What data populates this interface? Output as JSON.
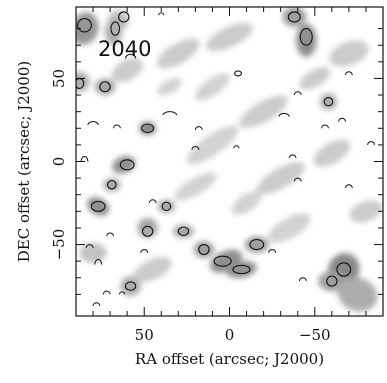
{
  "chart_data": {
    "type": "heatmap",
    "field_label": "2040",
    "xlabel": "RA offset (arcsec; J2000)",
    "ylabel": "DEC offset (arcsec; J2000)",
    "xlim": [
      90,
      -90
    ],
    "ylim": [
      -93,
      93
    ],
    "xticks": [
      50,
      0,
      -50
    ],
    "xtick_labels": [
      "50",
      "0",
      "−50"
    ],
    "yticks": [
      50,
      0,
      -50
    ],
    "ytick_labels": [
      "50",
      "0",
      "−50"
    ],
    "colormap": "greyscale",
    "grid": false,
    "contours": {
      "solid": [
        {
          "x": 85,
          "y": 82,
          "rx": 4,
          "ry": 4
        },
        {
          "x": 62,
          "y": 87,
          "rx": 3,
          "ry": 3
        },
        {
          "x": 67,
          "y": 80,
          "rx": 2.5,
          "ry": 4
        },
        {
          "x": 88,
          "y": 47,
          "rx": 2.5,
          "ry": 3
        },
        {
          "x": 73,
          "y": 45,
          "rx": 3,
          "ry": 3
        },
        {
          "x": 48,
          "y": 20,
          "rx": 3.5,
          "ry": 2.5
        },
        {
          "x": 60,
          "y": -2,
          "rx": 4,
          "ry": 3
        },
        {
          "x": 69,
          "y": -14,
          "rx": 2.5,
          "ry": 2.5
        },
        {
          "x": 77,
          "y": -27,
          "rx": 4,
          "ry": 3
        },
        {
          "x": 37,
          "y": -27,
          "rx": 2.5,
          "ry": 2.5
        },
        {
          "x": 48,
          "y": -42,
          "rx": 3,
          "ry": 3
        },
        {
          "x": 27,
          "y": -42,
          "rx": 3,
          "ry": 2.5
        },
        {
          "x": 15,
          "y": -53,
          "rx": 3,
          "ry": 3
        },
        {
          "x": 4,
          "y": -60,
          "rx": 5,
          "ry": 3
        },
        {
          "x": -7,
          "y": -65,
          "rx": 5,
          "ry": 2.5
        },
        {
          "x": -16,
          "y": -50,
          "rx": 4,
          "ry": 3
        },
        {
          "x": -38,
          "y": 87,
          "rx": 3.5,
          "ry": 3
        },
        {
          "x": -45,
          "y": 75,
          "rx": 3.5,
          "ry": 5
        },
        {
          "x": -58,
          "y": 36,
          "rx": 2.5,
          "ry": 2.5
        },
        {
          "x": -67,
          "y": -65,
          "rx": 4,
          "ry": 4
        },
        {
          "x": -60,
          "y": -72,
          "rx": 3,
          "ry": 3
        },
        {
          "x": -5,
          "y": 53,
          "rx": 2,
          "ry": 1.5
        },
        {
          "x": 58,
          "y": -75,
          "rx": 3,
          "ry": 2.5
        }
      ],
      "dashed": [
        {
          "x": 58,
          "y": 62,
          "rx": 3,
          "ry": 2.5
        },
        {
          "x": 40,
          "y": 88,
          "rx": 1.5,
          "ry": 1.5
        },
        {
          "x": 80,
          "y": 22,
          "rx": 3,
          "ry": 2
        },
        {
          "x": 66,
          "y": 20,
          "rx": 2,
          "ry": 2
        },
        {
          "x": 35,
          "y": 28,
          "rx": 4,
          "ry": 2
        },
        {
          "x": 18,
          "y": 19,
          "rx": 2,
          "ry": 2
        },
        {
          "x": 20,
          "y": 7,
          "rx": 2,
          "ry": 2
        },
        {
          "x": -4,
          "y": 8,
          "rx": 1.5,
          "ry": 1.5
        },
        {
          "x": -32,
          "y": 27,
          "rx": 3,
          "ry": 2
        },
        {
          "x": -40,
          "y": 40,
          "rx": 2,
          "ry": 2
        },
        {
          "x": -70,
          "y": 52,
          "rx": 2,
          "ry": 2
        },
        {
          "x": -56,
          "y": 20,
          "rx": 2,
          "ry": 2
        },
        {
          "x": -66,
          "y": 24,
          "rx": 2,
          "ry": 2
        },
        {
          "x": -37,
          "y": 2,
          "rx": 2,
          "ry": 2
        },
        {
          "x": -40,
          "y": -12,
          "rx": 2,
          "ry": 2
        },
        {
          "x": -70,
          "y": -16,
          "rx": 2,
          "ry": 2
        },
        {
          "x": 85,
          "y": 0,
          "rx": 2,
          "ry": 3
        },
        {
          "x": 45,
          "y": -25,
          "rx": 2,
          "ry": 2
        },
        {
          "x": 70,
          "y": -45,
          "rx": 2,
          "ry": 2
        },
        {
          "x": 82,
          "y": -52,
          "rx": 2,
          "ry": 2
        },
        {
          "x": 77,
          "y": -62,
          "rx": 2,
          "ry": 3
        },
        {
          "x": 72,
          "y": -80,
          "rx": 2,
          "ry": 2
        },
        {
          "x": 63,
          "y": -80,
          "rx": 1.5,
          "ry": 1.5
        },
        {
          "x": 78,
          "y": -87,
          "rx": 2,
          "ry": 2
        },
        {
          "x": -43,
          "y": -72,
          "rx": 2,
          "ry": 2
        },
        {
          "x": -25,
          "y": -55,
          "rx": 2,
          "ry": 2
        },
        {
          "x": 50,
          "y": -55,
          "rx": 2,
          "ry": 2
        },
        {
          "x": -83,
          "y": 10,
          "rx": 2,
          "ry": 2
        }
      ]
    },
    "emission_blobs": [
      {
        "x": 85,
        "y": 80,
        "sx": 8,
        "sy": 10,
        "a": 0.7,
        "rot": 20
      },
      {
        "x": 65,
        "y": 85,
        "sx": 6,
        "sy": 6,
        "a": 0.45,
        "rot": 0
      },
      {
        "x": 68,
        "y": 78,
        "sx": 5,
        "sy": 8,
        "a": 0.55,
        "rot": 0
      },
      {
        "x": 88,
        "y": 48,
        "sx": 6,
        "sy": 6,
        "a": 0.55,
        "rot": 0
      },
      {
        "x": 73,
        "y": 45,
        "sx": 6,
        "sy": 5,
        "a": 0.6,
        "rot": 0
      },
      {
        "x": 48,
        "y": 20,
        "sx": 5,
        "sy": 4,
        "a": 0.8,
        "rot": 0
      },
      {
        "x": 62,
        "y": -2,
        "sx": 7,
        "sy": 5,
        "a": 0.75,
        "rot": -20
      },
      {
        "x": 69,
        "y": -14,
        "sx": 5,
        "sy": 4,
        "a": 0.6,
        "rot": 0
      },
      {
        "x": 77,
        "y": -27,
        "sx": 7,
        "sy": 5,
        "a": 0.75,
        "rot": 30
      },
      {
        "x": 37,
        "y": -27,
        "sx": 5,
        "sy": 4,
        "a": 0.6,
        "rot": 0
      },
      {
        "x": 48,
        "y": -40,
        "sx": 6,
        "sy": 6,
        "a": 0.6,
        "rot": 0
      },
      {
        "x": 27,
        "y": -42,
        "sx": 6,
        "sy": 4,
        "a": 0.6,
        "rot": 0
      },
      {
        "x": 15,
        "y": -53,
        "sx": 6,
        "sy": 5,
        "a": 0.65,
        "rot": 0
      },
      {
        "x": 2,
        "y": -60,
        "sx": 10,
        "sy": 6,
        "a": 0.75,
        "rot": -25
      },
      {
        "x": -7,
        "y": -65,
        "sx": 9,
        "sy": 5,
        "a": 0.75,
        "rot": -10
      },
      {
        "x": -16,
        "y": -50,
        "sx": 7,
        "sy": 5,
        "a": 0.65,
        "rot": 0
      },
      {
        "x": -38,
        "y": 87,
        "sx": 7,
        "sy": 6,
        "a": 0.65,
        "rot": 0
      },
      {
        "x": -45,
        "y": 73,
        "sx": 6,
        "sy": 10,
        "a": 0.75,
        "rot": 0
      },
      {
        "x": -58,
        "y": 36,
        "sx": 5,
        "sy": 5,
        "a": 0.55,
        "rot": 0
      },
      {
        "x": -67,
        "y": -65,
        "sx": 9,
        "sy": 10,
        "a": 0.8,
        "rot": 30
      },
      {
        "x": -60,
        "y": -72,
        "sx": 8,
        "sy": 6,
        "a": 0.65,
        "rot": 0
      },
      {
        "x": -75,
        "y": -80,
        "sx": 12,
        "sy": 10,
        "a": 0.55,
        "rot": 20
      },
      {
        "x": 58,
        "y": -75,
        "sx": 6,
        "sy": 6,
        "a": 0.55,
        "rot": 0
      },
      {
        "x": 30,
        "y": 65,
        "sx": 14,
        "sy": 6,
        "a": 0.35,
        "rot": -30
      },
      {
        "x": 0,
        "y": 75,
        "sx": 15,
        "sy": 6,
        "a": 0.35,
        "rot": -25
      },
      {
        "x": -20,
        "y": 30,
        "sx": 16,
        "sy": 6,
        "a": 0.35,
        "rot": -30
      },
      {
        "x": 10,
        "y": 10,
        "sx": 18,
        "sy": 6,
        "a": 0.3,
        "rot": -35
      },
      {
        "x": -30,
        "y": -10,
        "sx": 16,
        "sy": 6,
        "a": 0.35,
        "rot": -30
      },
      {
        "x": 20,
        "y": -15,
        "sx": 14,
        "sy": 5,
        "a": 0.3,
        "rot": -30
      },
      {
        "x": -60,
        "y": 5,
        "sx": 12,
        "sy": 6,
        "a": 0.35,
        "rot": -30
      },
      {
        "x": -70,
        "y": 65,
        "sx": 12,
        "sy": 7,
        "a": 0.35,
        "rot": -20
      },
      {
        "x": 60,
        "y": 55,
        "sx": 10,
        "sy": 6,
        "a": 0.35,
        "rot": -30
      },
      {
        "x": 45,
        "y": -65,
        "sx": 12,
        "sy": 6,
        "a": 0.35,
        "rot": -25
      },
      {
        "x": -35,
        "y": -40,
        "sx": 14,
        "sy": 6,
        "a": 0.3,
        "rot": -30
      },
      {
        "x": 80,
        "y": -55,
        "sx": 8,
        "sy": 6,
        "a": 0.4,
        "rot": 0
      },
      {
        "x": 10,
        "y": 45,
        "sx": 12,
        "sy": 5,
        "a": 0.3,
        "rot": -35
      },
      {
        "x": -50,
        "y": 50,
        "sx": 10,
        "sy": 5,
        "a": 0.35,
        "rot": -30
      },
      {
        "x": -80,
        "y": -30,
        "sx": 10,
        "sy": 6,
        "a": 0.35,
        "rot": -20
      },
      {
        "x": 35,
        "y": 45,
        "sx": 8,
        "sy": 4,
        "a": 0.3,
        "rot": -30
      },
      {
        "x": -10,
        "y": -25,
        "sx": 10,
        "sy": 5,
        "a": 0.3,
        "rot": -35
      }
    ]
  }
}
